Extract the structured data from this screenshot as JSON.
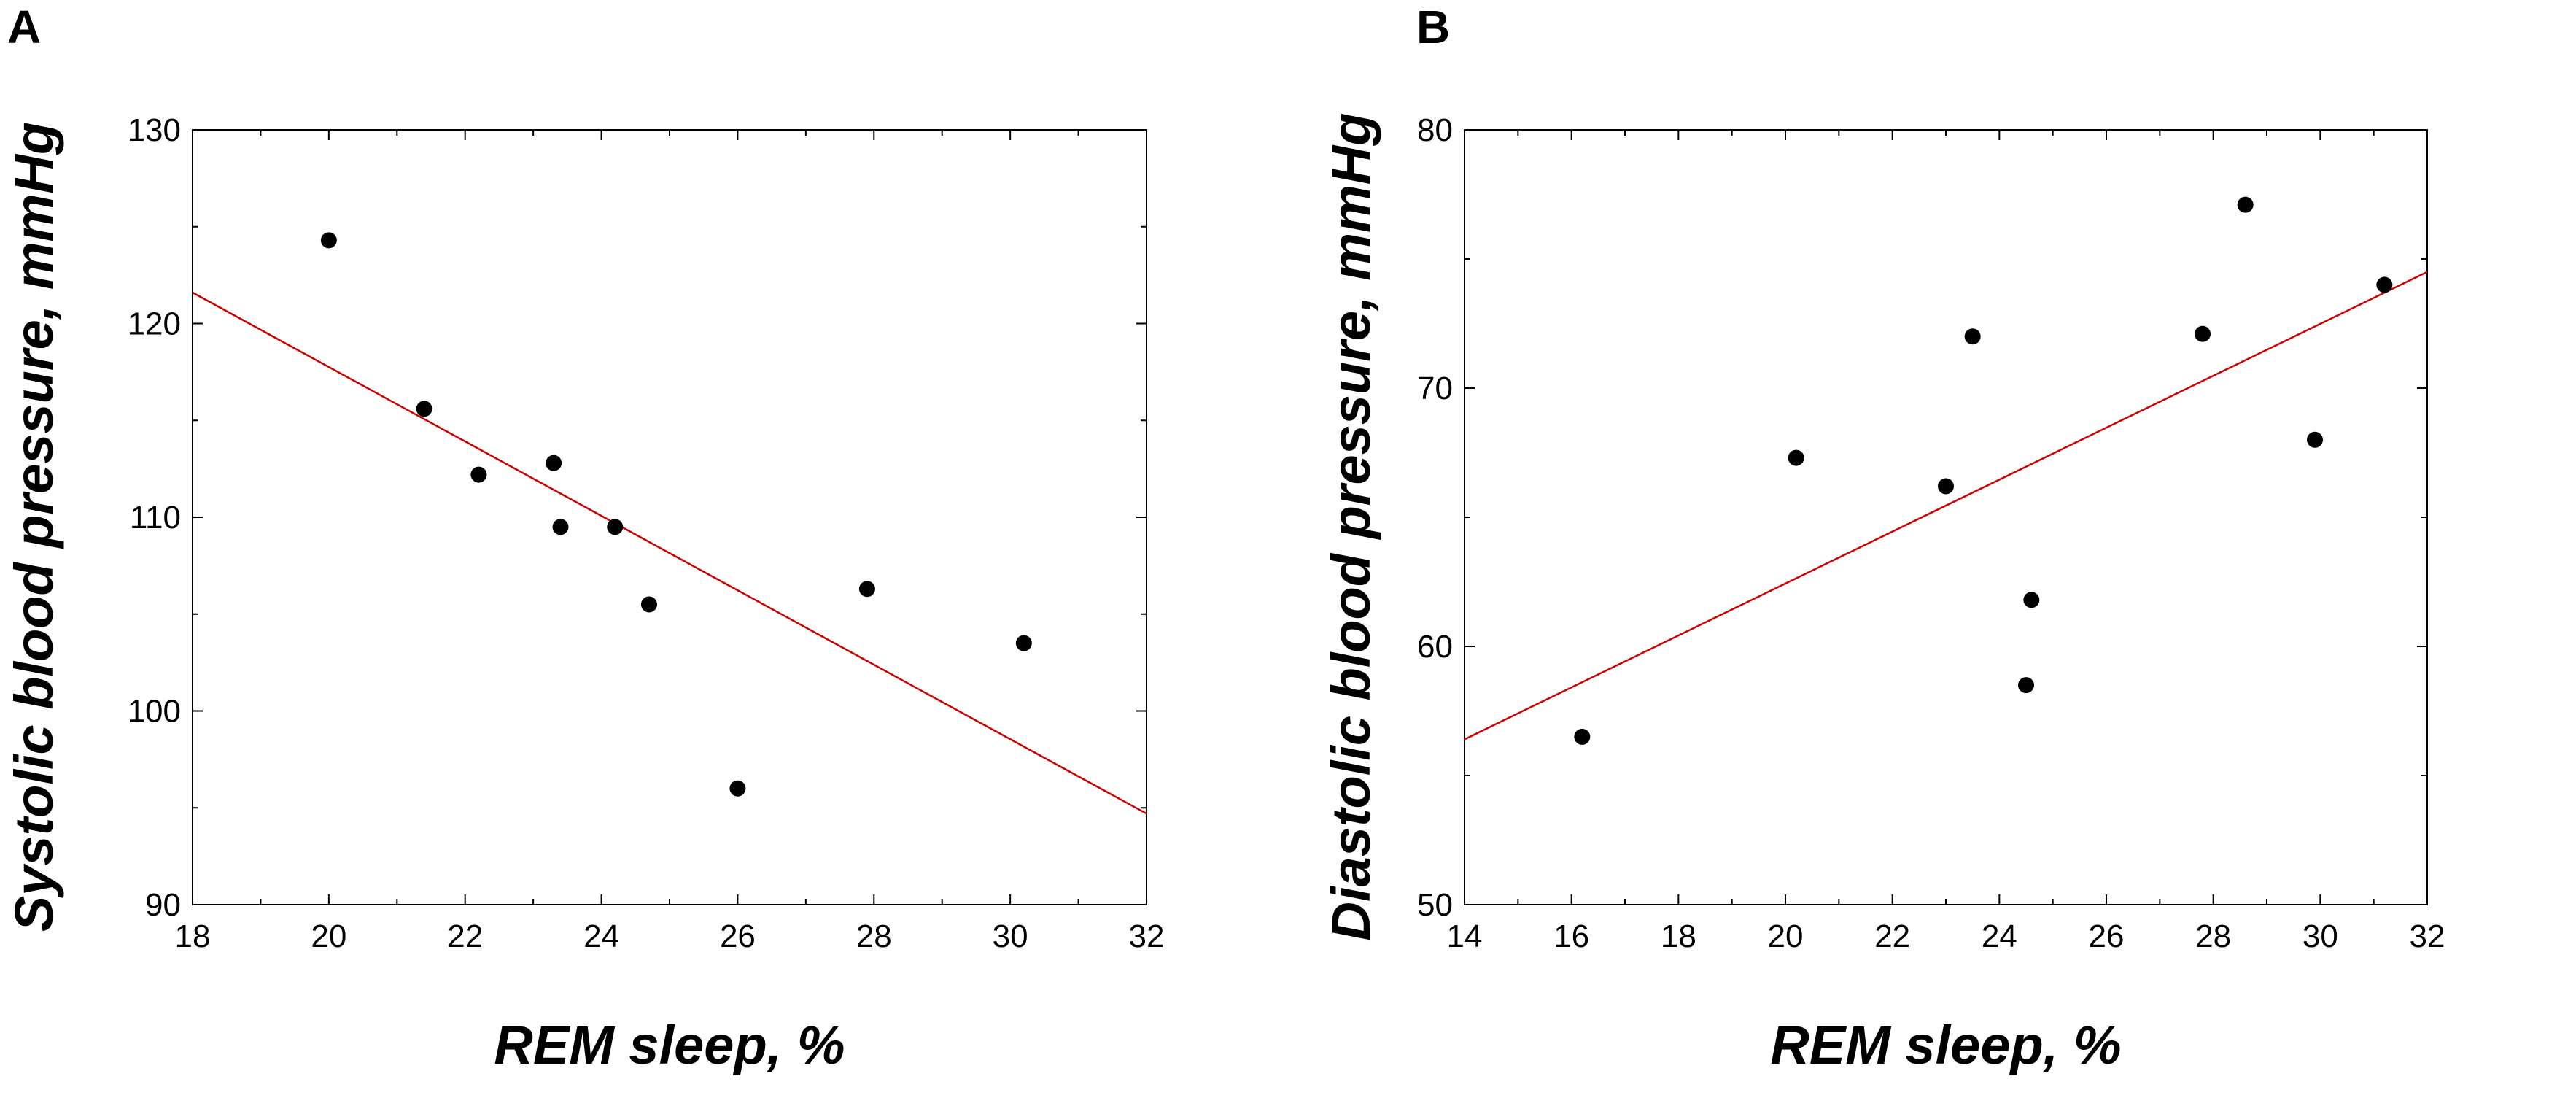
{
  "chart_data": [
    {
      "panel_label": "A",
      "type": "scatter",
      "xlabel": "REM sleep, %",
      "ylabel": "Systolic blood pressure, mmHg",
      "xlim": [
        18,
        32
      ],
      "ylim": [
        90,
        130
      ],
      "xticks": [
        18,
        20,
        22,
        24,
        26,
        28,
        30,
        32
      ],
      "yticks": [
        90,
        100,
        110,
        120,
        130
      ],
      "grid": false,
      "points": [
        {
          "x": 20.0,
          "y": 124.3
        },
        {
          "x": 21.4,
          "y": 115.6
        },
        {
          "x": 22.2,
          "y": 112.2
        },
        {
          "x": 23.3,
          "y": 112.8
        },
        {
          "x": 23.4,
          "y": 109.5
        },
        {
          "x": 24.2,
          "y": 109.5
        },
        {
          "x": 24.7,
          "y": 105.5
        },
        {
          "x": 26.0,
          "y": 96.0
        },
        {
          "x": 27.9,
          "y": 106.3
        },
        {
          "x": 30.2,
          "y": 103.5
        }
      ],
      "fit_line": {
        "x": [
          18,
          32
        ],
        "y": [
          121.6,
          94.7
        ]
      },
      "point_color": "#000000",
      "line_color": "#cc0000"
    },
    {
      "panel_label": "B",
      "type": "scatter",
      "xlabel": "REM sleep, %",
      "ylabel": "Diastolic blood pressure, mmHg",
      "xlim": [
        14,
        32
      ],
      "ylim": [
        50,
        80
      ],
      "xticks": [
        14,
        16,
        18,
        20,
        22,
        24,
        26,
        28,
        30,
        32
      ],
      "yticks": [
        50,
        60,
        70,
        80
      ],
      "grid": false,
      "points": [
        {
          "x": 16.2,
          "y": 56.5
        },
        {
          "x": 20.2,
          "y": 67.3
        },
        {
          "x": 23.0,
          "y": 66.2
        },
        {
          "x": 23.5,
          "y": 72.0
        },
        {
          "x": 24.5,
          "y": 58.5
        },
        {
          "x": 24.6,
          "y": 61.8
        },
        {
          "x": 27.8,
          "y": 72.1
        },
        {
          "x": 28.6,
          "y": 77.1
        },
        {
          "x": 29.9,
          "y": 68.0
        },
        {
          "x": 31.2,
          "y": 74.0
        }
      ],
      "fit_line": {
        "x": [
          14,
          32
        ],
        "y": [
          56.4,
          74.5
        ]
      },
      "point_color": "#000000",
      "line_color": "#cc0000"
    }
  ]
}
